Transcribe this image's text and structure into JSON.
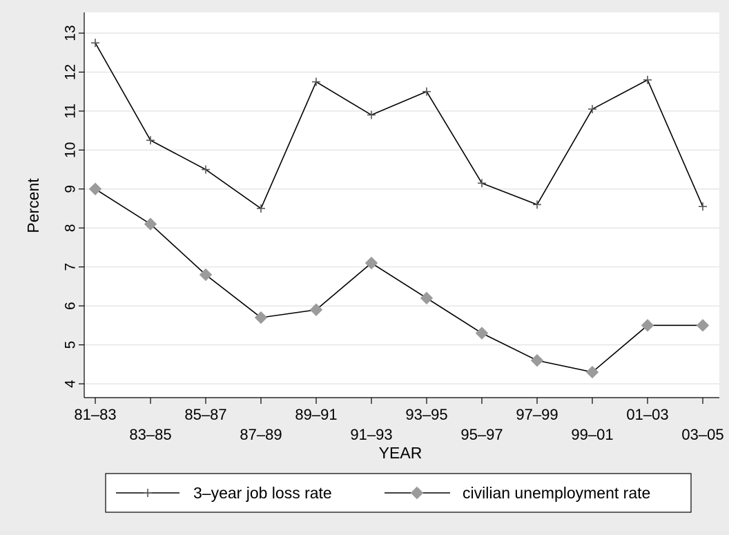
{
  "chart_data": {
    "type": "line",
    "title": "",
    "xlabel": "YEAR",
    "ylabel": "Percent",
    "ylim": [
      4,
      13
    ],
    "yticks": [
      4,
      5,
      6,
      7,
      8,
      9,
      10,
      11,
      12,
      13
    ],
    "grid": true,
    "legend_position": "bottom",
    "categories": [
      "81–83",
      "83–85",
      "85–87",
      "87–89",
      "89–91",
      "91–93",
      "93–95",
      "95–97",
      "97–99",
      "99–01",
      "01–03",
      "03–05"
    ],
    "series": [
      {
        "name": "3–year job loss rate",
        "marker": "plus",
        "line_color": "#000000",
        "marker_color": "#555555",
        "values": [
          12.75,
          10.25,
          9.5,
          8.5,
          11.75,
          10.9,
          11.5,
          9.15,
          8.6,
          11.05,
          11.8,
          8.55
        ]
      },
      {
        "name": "civilian unemployment rate",
        "marker": "diamond",
        "line_color": "#000000",
        "marker_color": "#9b9b9b",
        "values": [
          9.0,
          8.1,
          6.8,
          5.7,
          5.9,
          7.1,
          6.2,
          5.3,
          4.6,
          4.3,
          5.5,
          5.5
        ]
      }
    ]
  }
}
